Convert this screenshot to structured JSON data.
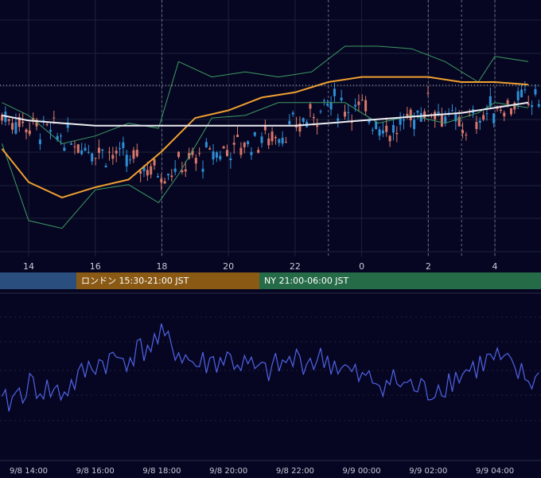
{
  "colors": {
    "background": "#060622",
    "grid": "#1f2238",
    "session_divider": "#6b6f86",
    "candle_up": "#2f8fd6",
    "candle_down": "#d9786a",
    "bollinger": "#3d9b63",
    "ma_short": "#f0a030",
    "ma_long": "#ececf2",
    "rsi_line": "#5063e6",
    "price_line": "#c8c8d6",
    "axis_text": "#c8c8d6",
    "tokyo": "#2a4e7e",
    "london": "#8a5a14",
    "newyork": "#266b47"
  },
  "time_axis": {
    "hour_labels": [
      "14",
      "16",
      "18",
      "20",
      "22",
      "0",
      "2",
      "4"
    ],
    "date_labels": [
      "9/8 14:00",
      "9/8 16:00",
      "9/8 18:00",
      "9/8 20:00",
      "9/8 22:00",
      "9/9 00:00",
      "9/9 02:00",
      "9/9 04:00"
    ]
  },
  "sessions": [
    {
      "name": "tokyo",
      "label": "",
      "color": "#2a4e7e"
    },
    {
      "name": "london",
      "label": "ロンドン 15:30-21:00 JST",
      "color": "#8a5a14"
    },
    {
      "name": "newyork",
      "label": "NY 21:00-06:00 JST",
      "color": "#266b47"
    }
  ],
  "chart_data": [
    {
      "type": "candlestick",
      "title": "",
      "x_hours": [
        13.2,
        18,
        20,
        22,
        23,
        0,
        1,
        2,
        3,
        4,
        5.4
      ],
      "close_y": [
        55,
        33,
        42,
        50,
        60,
        57,
        48,
        60,
        50,
        58,
        62
      ],
      "ylim": [
        0,
        100
      ],
      "session_divider_hours": [
        18,
        23,
        2,
        3,
        4
      ],
      "grid": true,
      "indicators": [
        {
          "name": "",
          "kind": "bollinger_upper",
          "x_hours": [
            13.2,
            14,
            15,
            16,
            17,
            17.9,
            18.5,
            19.5,
            20.5,
            21.5,
            22.5,
            23.5,
            0.5,
            1.5,
            2.5,
            3.5,
            4,
            5
          ],
          "y": [
            60,
            55,
            44,
            47,
            52,
            50,
            76,
            70,
            72,
            70,
            72,
            82,
            82,
            81,
            76,
            68,
            78,
            76
          ]
        },
        {
          "name": "",
          "kind": "bollinger_lower",
          "x_hours": [
            13.2,
            14,
            15,
            16,
            17,
            17.9,
            18.5,
            19.5,
            20.5,
            21.5,
            22.5,
            23.5,
            0.5,
            1.5,
            2.5,
            3.5,
            4,
            5
          ],
          "y": [
            44,
            14,
            11,
            26,
            28,
            21,
            32,
            54,
            55,
            60,
            60,
            60,
            52,
            55,
            52,
            56,
            60,
            58
          ]
        },
        {
          "name": "",
          "kind": "ma_short",
          "x_hours": [
            13.2,
            14,
            15,
            16,
            17,
            18,
            19,
            20,
            21,
            22,
            23,
            0,
            1,
            2,
            3,
            4,
            5
          ],
          "y": [
            42,
            29,
            23,
            27,
            30,
            41,
            54,
            57,
            62,
            64,
            68,
            70,
            70,
            70,
            68,
            68,
            67
          ]
        },
        {
          "name": "",
          "kind": "ma_long",
          "x_hours": [
            13.2,
            14,
            15,
            16,
            17,
            18,
            19,
            20,
            21,
            22,
            23,
            0,
            1,
            2,
            3,
            4,
            5
          ],
          "y": [
            55,
            53,
            52,
            51,
            51,
            51,
            51,
            51,
            51,
            51,
            52,
            53,
            54,
            55,
            56,
            58,
            60
          ]
        }
      ]
    },
    {
      "type": "line",
      "title": "",
      "x_hours": [
        13.2,
        14,
        15,
        16,
        17,
        18,
        19,
        20,
        21,
        22,
        23,
        0,
        1,
        2,
        3,
        4,
        5
      ],
      "values": [
        32,
        45,
        40,
        58,
        62,
        73,
        57,
        61,
        52,
        60,
        60,
        48,
        47,
        41,
        52,
        61,
        48
      ],
      "ylim": [
        0,
        100
      ],
      "grid": true
    }
  ]
}
